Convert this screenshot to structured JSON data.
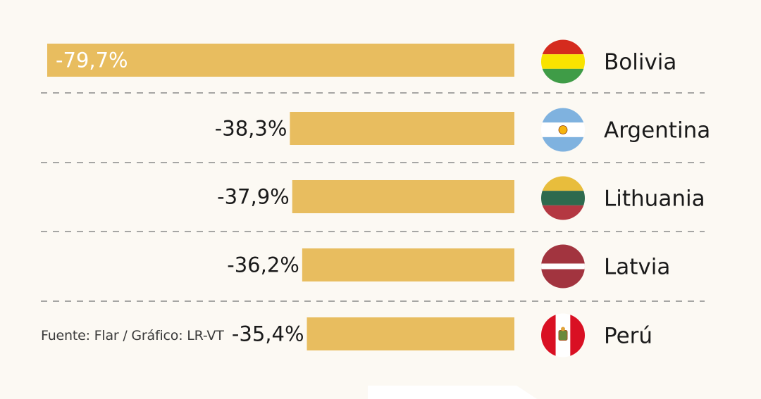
{
  "chart_data": {
    "type": "bar",
    "orientation": "horizontal",
    "categories": [
      "Bolivia",
      "Argentina",
      "Lithuania",
      "Latvia",
      "Perú"
    ],
    "values": [
      -79.7,
      -38.3,
      -37.9,
      -36.2,
      -35.4
    ],
    "value_labels": [
      "-79,7%",
      "-38,3%",
      "-37,9%",
      "-36,2%",
      "-35,4%"
    ],
    "bar_color": "#e8bd5f",
    "grid": "dashed separators between rows",
    "flags": [
      "bolivia-flag-icon",
      "argentina-flag-icon",
      "lithuania-flag-icon",
      "latvia-flag-icon",
      "peru-flag-icon"
    ]
  },
  "footer": {
    "source": "Fuente: Flar / Gráfico: LR-VT"
  }
}
